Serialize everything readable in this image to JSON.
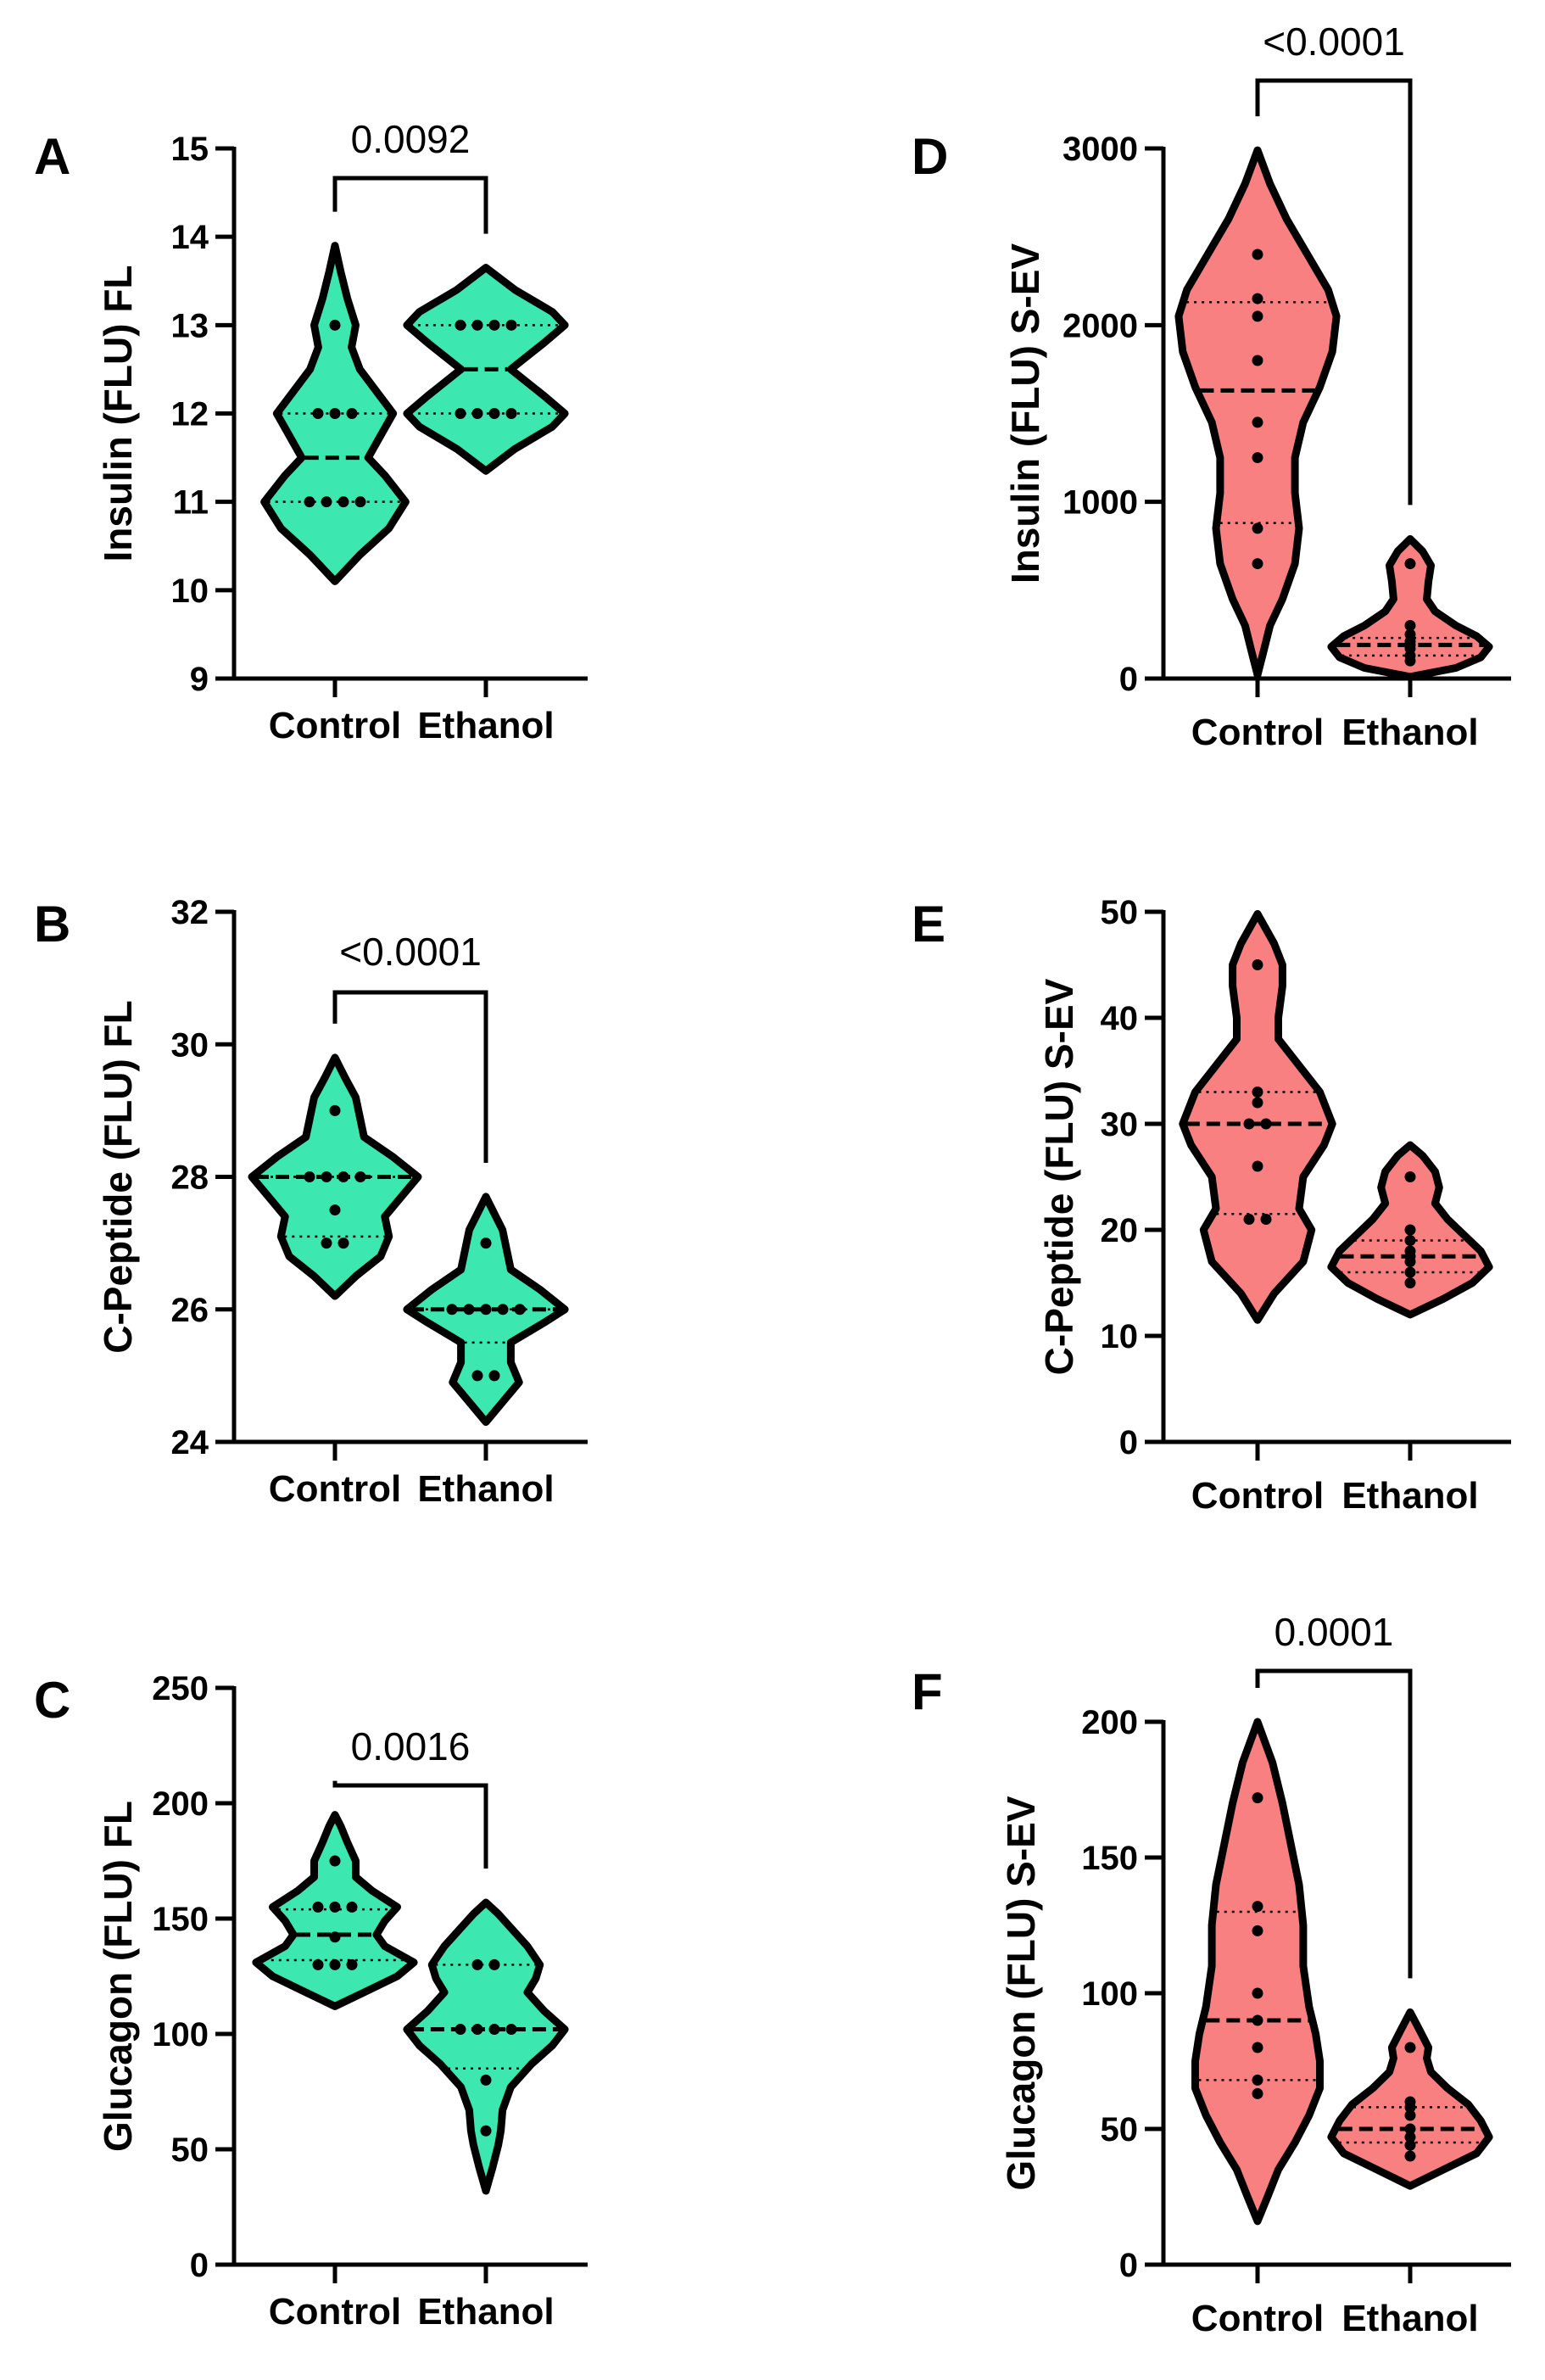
{
  "colors": {
    "fl": "#3de8b0",
    "sev": "#f98080",
    "ink": "#000000"
  },
  "chart_data": [
    {
      "id": "A",
      "type": "violin",
      "letter": "A",
      "ylabel": "Insulin (FLU) FL",
      "ylim": [
        9,
        15
      ],
      "ticks": [
        9,
        10,
        11,
        12,
        13,
        14,
        15
      ],
      "categories": [
        "Control",
        "Ethanol"
      ],
      "color_key": "fl",
      "pvalue": "0.0092",
      "series": [
        {
          "name": "Control",
          "values": [
            11,
            11,
            11,
            11,
            12,
            12,
            12,
            13
          ],
          "median": 11.5,
          "q1": 11,
          "q3": 12,
          "min_extent": 10.1,
          "max_extent": 13.9,
          "density": [
            [
              10.1,
              0
            ],
            [
              10.4,
              0.3
            ],
            [
              10.7,
              0.65
            ],
            [
              11.0,
              0.85
            ],
            [
              11.3,
              0.6
            ],
            [
              11.5,
              0.4
            ],
            [
              11.75,
              0.55
            ],
            [
              12.0,
              0.7
            ],
            [
              12.25,
              0.5
            ],
            [
              12.5,
              0.3
            ],
            [
              12.75,
              0.2
            ],
            [
              13.0,
              0.25
            ],
            [
              13.3,
              0.15
            ],
            [
              13.6,
              0.07
            ],
            [
              13.9,
              0
            ]
          ]
        },
        {
          "name": "Ethanol",
          "values": [
            12,
            12,
            12,
            12,
            13,
            13,
            13,
            13
          ],
          "median": 12.5,
          "q1": 12,
          "q3": 13,
          "min_extent": 11.35,
          "max_extent": 13.65,
          "density": [
            [
              11.35,
              0
            ],
            [
              11.6,
              0.35
            ],
            [
              11.85,
              0.8
            ],
            [
              12.0,
              0.95
            ],
            [
              12.2,
              0.7
            ],
            [
              12.5,
              0.3
            ],
            [
              12.8,
              0.7
            ],
            [
              13.0,
              0.95
            ],
            [
              13.15,
              0.8
            ],
            [
              13.4,
              0.35
            ],
            [
              13.65,
              0
            ]
          ]
        }
      ]
    },
    {
      "id": "B",
      "type": "violin",
      "letter": "B",
      "ylabel": "C-Peptide (FLU) FL",
      "ylim": [
        24,
        32
      ],
      "ticks": [
        24,
        26,
        28,
        30,
        32
      ],
      "categories": [
        "Control",
        "Ethanol"
      ],
      "color_key": "fl",
      "pvalue": "<0.0001",
      "series": [
        {
          "name": "Control",
          "values": [
            27,
            27,
            27.5,
            28,
            28,
            28,
            28,
            29
          ],
          "median": 28,
          "q1": 27.1,
          "q3": 28,
          "min_extent": 26.2,
          "max_extent": 29.8,
          "density": [
            [
              26.2,
              0
            ],
            [
              26.5,
              0.25
            ],
            [
              26.8,
              0.55
            ],
            [
              27.1,
              0.65
            ],
            [
              27.4,
              0.6
            ],
            [
              27.7,
              0.8
            ],
            [
              28.0,
              1.0
            ],
            [
              28.3,
              0.7
            ],
            [
              28.6,
              0.35
            ],
            [
              28.9,
              0.3
            ],
            [
              29.2,
              0.25
            ],
            [
              29.5,
              0.12
            ],
            [
              29.8,
              0
            ]
          ]
        },
        {
          "name": "Ethanol",
          "values": [
            25,
            25,
            26,
            26,
            26,
            26,
            26,
            27
          ],
          "median": 26,
          "q1": 25.5,
          "q3": 26,
          "min_extent": 24.3,
          "max_extent": 27.7,
          "density": [
            [
              24.3,
              0
            ],
            [
              24.6,
              0.2
            ],
            [
              24.9,
              0.4
            ],
            [
              25.2,
              0.3
            ],
            [
              25.5,
              0.3
            ],
            [
              25.8,
              0.7
            ],
            [
              26.0,
              0.95
            ],
            [
              26.3,
              0.65
            ],
            [
              26.6,
              0.3
            ],
            [
              26.9,
              0.25
            ],
            [
              27.2,
              0.2
            ],
            [
              27.45,
              0.1
            ],
            [
              27.7,
              0
            ]
          ]
        }
      ]
    },
    {
      "id": "C",
      "type": "violin",
      "letter": "C",
      "ylabel": "Glucagon (FLU) FL",
      "ylim": [
        0,
        250
      ],
      "ticks": [
        0,
        50,
        100,
        150,
        200,
        250
      ],
      "categories": [
        "Control",
        "Ethanol"
      ],
      "color_key": "fl",
      "pvalue": "0.0016",
      "series": [
        {
          "name": "Control",
          "values": [
            130,
            130,
            130,
            142,
            155,
            155,
            155,
            175
          ],
          "median": 143,
          "q1": 132,
          "q3": 154,
          "min_extent": 112,
          "max_extent": 195,
          "density": [
            [
              112,
              0
            ],
            [
              118,
              0.35
            ],
            [
              125,
              0.75
            ],
            [
              131,
              0.95
            ],
            [
              138,
              0.6
            ],
            [
              143,
              0.5
            ],
            [
              149,
              0.6
            ],
            [
              155,
              0.75
            ],
            [
              162,
              0.45
            ],
            [
              168,
              0.25
            ],
            [
              175,
              0.25
            ],
            [
              183,
              0.15
            ],
            [
              190,
              0.07
            ],
            [
              195,
              0
            ]
          ]
        },
        {
          "name": "Ethanol",
          "values": [
            58,
            80,
            102,
            102,
            102,
            102,
            130,
            130
          ],
          "median": 102,
          "q1": 85,
          "q3": 130,
          "min_extent": 32,
          "max_extent": 157,
          "density": [
            [
              32,
              0
            ],
            [
              42,
              0.08
            ],
            [
              52,
              0.15
            ],
            [
              58,
              0.18
            ],
            [
              67,
              0.2
            ],
            [
              77,
              0.3
            ],
            [
              87,
              0.55
            ],
            [
              95,
              0.8
            ],
            [
              102,
              0.95
            ],
            [
              110,
              0.7
            ],
            [
              118,
              0.5
            ],
            [
              124,
              0.6
            ],
            [
              130,
              0.65
            ],
            [
              138,
              0.5
            ],
            [
              146,
              0.3
            ],
            [
              152,
              0.15
            ],
            [
              157,
              0
            ]
          ]
        }
      ]
    },
    {
      "id": "D",
      "type": "violin",
      "letter": "D",
      "ylabel": "Insulin  (FLU) S-EV",
      "ylim": [
        0,
        3000
      ],
      "ticks": [
        0,
        1000,
        2000,
        3000
      ],
      "categories": [
        "Control",
        "Ethanol"
      ],
      "color_key": "sev",
      "pvalue": "<0.0001",
      "series": [
        {
          "name": "Control",
          "values": [
            650,
            850,
            1250,
            1450,
            1800,
            2050,
            2150,
            2400
          ],
          "median": 1630,
          "q1": 880,
          "q3": 2130,
          "min_extent": 20,
          "max_extent": 2990,
          "density": [
            [
              20,
              0
            ],
            [
              150,
              0.07
            ],
            [
              300,
              0.15
            ],
            [
              450,
              0.3
            ],
            [
              650,
              0.45
            ],
            [
              850,
              0.5
            ],
            [
              1050,
              0.45
            ],
            [
              1250,
              0.45
            ],
            [
              1450,
              0.55
            ],
            [
              1650,
              0.75
            ],
            [
              1850,
              0.9
            ],
            [
              2050,
              0.95
            ],
            [
              2200,
              0.85
            ],
            [
              2400,
              0.6
            ],
            [
              2600,
              0.35
            ],
            [
              2800,
              0.15
            ],
            [
              2990,
              0
            ]
          ]
        },
        {
          "name": "Ethanol",
          "values": [
            100,
            130,
            170,
            190,
            210,
            250,
            300,
            650
          ],
          "median": 190,
          "q1": 130,
          "q3": 230,
          "min_extent": 10,
          "max_extent": 790,
          "density": [
            [
              10,
              0
            ],
            [
              60,
              0.55
            ],
            [
              120,
              0.85
            ],
            [
              180,
              0.95
            ],
            [
              240,
              0.8
            ],
            [
              300,
              0.55
            ],
            [
              380,
              0.3
            ],
            [
              450,
              0.2
            ],
            [
              550,
              0.22
            ],
            [
              640,
              0.25
            ],
            [
              720,
              0.15
            ],
            [
              790,
              0
            ]
          ]
        }
      ]
    },
    {
      "id": "E",
      "type": "violin",
      "letter": "E",
      "ylabel": "C-Peptide (FLU) S-EV",
      "ylim": [
        0,
        50
      ],
      "ticks": [
        0,
        10,
        20,
        30,
        40,
        50
      ],
      "categories": [
        "Control",
        "Ethanol"
      ],
      "color_key": "sev",
      "pvalue": "",
      "series": [
        {
          "name": "Control",
          "values": [
            21,
            21,
            26,
            30,
            30,
            32,
            33,
            45
          ],
          "median": 30,
          "q1": 21.5,
          "q3": 33,
          "min_extent": 11.5,
          "max_extent": 49.8,
          "density": [
            [
              11.5,
              0
            ],
            [
              14,
              0.2
            ],
            [
              17,
              0.55
            ],
            [
              20,
              0.65
            ],
            [
              22,
              0.5
            ],
            [
              25,
              0.55
            ],
            [
              28,
              0.8
            ],
            [
              30,
              0.9
            ],
            [
              33,
              0.75
            ],
            [
              36,
              0.45
            ],
            [
              38,
              0.25
            ],
            [
              40,
              0.25
            ],
            [
              43,
              0.3
            ],
            [
              45,
              0.3
            ],
            [
              47,
              0.2
            ],
            [
              49.8,
              0
            ]
          ]
        },
        {
          "name": "Ethanol",
          "values": [
            15,
            16,
            17,
            17.5,
            18,
            19,
            20,
            25
          ],
          "median": 17.5,
          "q1": 16,
          "q3": 19,
          "min_extent": 12,
          "max_extent": 28,
          "density": [
            [
              12,
              0
            ],
            [
              13.5,
              0.4
            ],
            [
              15,
              0.75
            ],
            [
              16.5,
              0.95
            ],
            [
              18,
              0.85
            ],
            [
              19.5,
              0.65
            ],
            [
              21,
              0.45
            ],
            [
              22.5,
              0.3
            ],
            [
              24,
              0.35
            ],
            [
              25.5,
              0.3
            ],
            [
              27,
              0.15
            ],
            [
              28,
              0
            ]
          ]
        }
      ]
    },
    {
      "id": "F",
      "type": "violin",
      "letter": "F",
      "ylabel": "Glucagon (FLU) S-EV",
      "ylim": [
        0,
        200
      ],
      "ticks": [
        0,
        50,
        100,
        150,
        200
      ],
      "categories": [
        "Control",
        "Ethanol"
      ],
      "color_key": "sev",
      "pvalue": "0.0001",
      "series": [
        {
          "name": "Control",
          "values": [
            63,
            68,
            80,
            90,
            100,
            123,
            132,
            172
          ],
          "median": 90,
          "q1": 68,
          "q3": 130,
          "min_extent": 16,
          "max_extent": 200,
          "density": [
            [
              16,
              0
            ],
            [
              25,
              0.12
            ],
            [
              35,
              0.25
            ],
            [
              45,
              0.45
            ],
            [
              55,
              0.62
            ],
            [
              65,
              0.75
            ],
            [
              75,
              0.75
            ],
            [
              85,
              0.7
            ],
            [
              95,
              0.62
            ],
            [
              110,
              0.55
            ],
            [
              125,
              0.55
            ],
            [
              140,
              0.5
            ],
            [
              155,
              0.4
            ],
            [
              170,
              0.3
            ],
            [
              185,
              0.18
            ],
            [
              200,
              0
            ]
          ]
        },
        {
          "name": "Ethanol",
          "values": [
            40,
            44,
            47,
            50,
            55,
            58,
            60,
            80
          ],
          "median": 50,
          "q1": 45,
          "q3": 58,
          "min_extent": 29,
          "max_extent": 93,
          "density": [
            [
              29,
              0
            ],
            [
              35,
              0.4
            ],
            [
              41,
              0.8
            ],
            [
              47,
              0.95
            ],
            [
              53,
              0.85
            ],
            [
              59,
              0.7
            ],
            [
              65,
              0.45
            ],
            [
              71,
              0.25
            ],
            [
              76,
              0.2
            ],
            [
              80,
              0.22
            ],
            [
              86,
              0.12
            ],
            [
              93,
              0
            ]
          ]
        }
      ]
    }
  ]
}
